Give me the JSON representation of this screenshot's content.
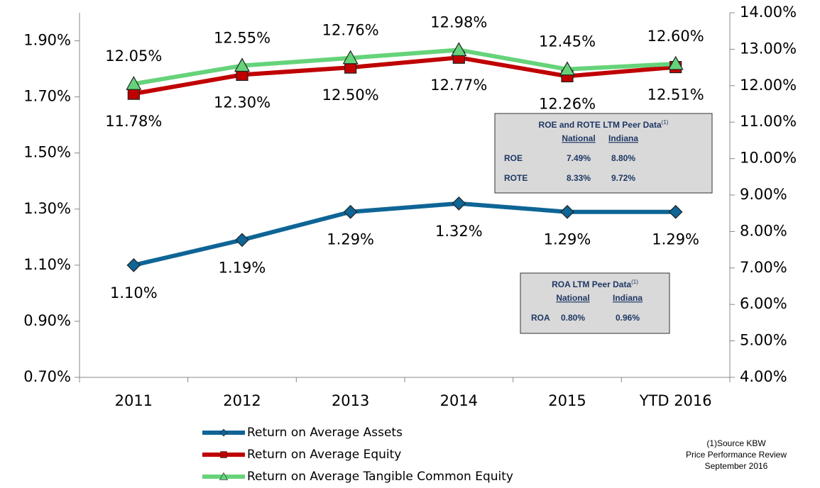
{
  "chart_data": {
    "type": "line",
    "categories": [
      "2011",
      "2012",
      "2013",
      "2014",
      "2015",
      "YTD 2016"
    ],
    "series": [
      {
        "name": "Return on Average Assets",
        "color": "#0e6596",
        "marker": "diamond",
        "axis": "y",
        "values": [
          1.1,
          1.19,
          1.29,
          1.32,
          1.29,
          1.29
        ],
        "value_labels": [
          "1.10%",
          "1.19%",
          "1.29%",
          "1.32%",
          "1.29%",
          "1.29%"
        ]
      },
      {
        "name": "Return on Average Equity",
        "color": "#c00000",
        "marker": "square",
        "axis": "y2",
        "values": [
          11.78,
          12.3,
          12.5,
          12.77,
          12.26,
          12.51
        ],
        "value_labels": [
          "11.78%",
          "12.30%",
          "12.50%",
          "12.77%",
          "12.26%",
          "12.51%"
        ]
      },
      {
        "name": "Return on Average Tangible Common Equity",
        "color": "#66d37a",
        "marker": "triangle",
        "axis": "y2",
        "values": [
          12.05,
          12.55,
          12.76,
          12.98,
          12.45,
          12.6
        ],
        "value_labels": [
          "12.05%",
          "12.55%",
          "12.76%",
          "12.98%",
          "12.45%",
          "12.60%"
        ]
      }
    ],
    "ylim": [
      0.7,
      2.0
    ],
    "yticks": [
      {
        "value": 0.7,
        "label": "0.70%"
      },
      {
        "value": 0.9,
        "label": "0.90%"
      },
      {
        "value": 1.1,
        "label": "1.10%"
      },
      {
        "value": 1.3,
        "label": "1.30%"
      },
      {
        "value": 1.5,
        "label": "1.50%"
      },
      {
        "value": 1.7,
        "label": "1.70%"
      },
      {
        "value": 1.9,
        "label": "1.90%"
      }
    ],
    "y2lim": [
      4,
      14
    ],
    "y2ticks": [
      {
        "value": 4,
        "label": "4.00%"
      },
      {
        "value": 5,
        "label": "5.00%"
      },
      {
        "value": 6,
        "label": "6.00%"
      },
      {
        "value": 7,
        "label": "7.00%"
      },
      {
        "value": 8,
        "label": "8.00%"
      },
      {
        "value": 9,
        "label": "9.00%"
      },
      {
        "value": 10,
        "label": "10.00%"
      },
      {
        "value": 11,
        "label": "11.00%"
      },
      {
        "value": 12,
        "label": "12.00%"
      },
      {
        "value": 13,
        "label": "13.00%"
      },
      {
        "value": 14,
        "label": "14.00%"
      }
    ],
    "grid": false,
    "annotations": [
      {
        "title": "ROE and ROTE LTM Peer Data",
        "note": "(1)",
        "columns": [
          "National",
          "Indiana"
        ],
        "rows": [
          [
            "ROE",
            "7.49%",
            "8.80%"
          ],
          [
            "ROTE",
            "8.33%",
            "9.72%"
          ]
        ]
      },
      {
        "title": "ROA LTM Peer Data",
        "note": "(1)",
        "columns": [
          "National",
          "Indiana"
        ],
        "rows": [
          [
            "ROA",
            "0.80%",
            "0.96%"
          ]
        ]
      }
    ],
    "footnote": [
      "(1)Source KBW",
      "Price Performance Review",
      "September 2016"
    ]
  }
}
